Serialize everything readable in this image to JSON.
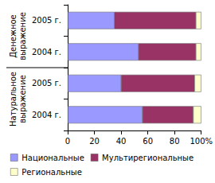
{
  "chart_data": {
    "type": "bar",
    "orientation": "horizontal",
    "stacked": true,
    "groups": [
      "Денежное выражение",
      "Натуральное выражение"
    ],
    "categories": [
      "2005 г.",
      "2004 г.",
      "2005 г.",
      "2004 г."
    ],
    "series": [
      {
        "name": "Национальные",
        "color": "#9999ff",
        "values": [
          35,
          53,
          40,
          56
        ]
      },
      {
        "name": "Мультирегиональные",
        "color": "#993366",
        "values": [
          61,
          43,
          55,
          38
        ]
      },
      {
        "name": "Региональные",
        "color": "#ffffcc",
        "values": [
          4,
          4,
          5,
          6
        ]
      }
    ],
    "xlim": [
      0,
      100
    ],
    "xticks": [
      0,
      20,
      40,
      60,
      80,
      {
        "value": 100,
        "label": "100%"
      }
    ],
    "grid": false,
    "legend": "bottom"
  }
}
